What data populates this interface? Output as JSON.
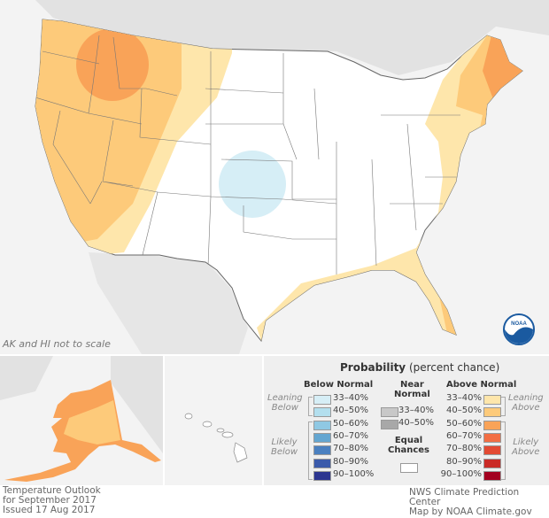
{
  "map": {
    "scale_note": "AK and HI not to scale"
  },
  "legend": {
    "title": "Probability",
    "title_suffix": "(percent chance)",
    "below_header": "Below Normal",
    "near_header": [
      "Near",
      "Normal"
    ],
    "above_header": "Above Normal",
    "leaning_below": [
      "Leaning",
      "Below"
    ],
    "likely_below": [
      "Likely",
      "Below"
    ],
    "leaning_above": [
      "Leaning",
      "Above"
    ],
    "likely_above": [
      "Likely",
      "Above"
    ],
    "equal_chances": [
      "Equal",
      "Chances"
    ],
    "below": [
      {
        "label": "33–40%",
        "color": "#d6eef6"
      },
      {
        "label": "40–50%",
        "color": "#b3dfee"
      },
      {
        "label": "50–60%",
        "color": "#8fc8e3"
      },
      {
        "label": "60–70%",
        "color": "#64a6d1"
      },
      {
        "label": "70–80%",
        "color": "#4a80c0"
      },
      {
        "label": "80–90%",
        "color": "#3a5aab"
      },
      {
        "label": "90–100%",
        "color": "#2c3590"
      }
    ],
    "near": [
      {
        "label": "33–40%",
        "color": "#c8c8c8"
      },
      {
        "label": "40–50%",
        "color": "#a8a8a8"
      }
    ],
    "above": [
      {
        "label": "33–40%",
        "color": "#fee6ab"
      },
      {
        "label": "40–50%",
        "color": "#fdca7a"
      },
      {
        "label": "50–60%",
        "color": "#f9a358"
      },
      {
        "label": "60–70%",
        "color": "#f26e44"
      },
      {
        "label": "70–80%",
        "color": "#e34a33"
      },
      {
        "label": "80–90%",
        "color": "#ca2a26"
      },
      {
        "label": "90–100%",
        "color": "#a3001f"
      }
    ]
  },
  "footer": {
    "left": [
      "Temperature Outlook",
      "for September 2017",
      "Issued 17 Aug 2017"
    ],
    "right": [
      "NWS Climate Prediction Center",
      "Map by NOAA Climate.gov"
    ]
  },
  "logo": {
    "text": "NOAA"
  }
}
